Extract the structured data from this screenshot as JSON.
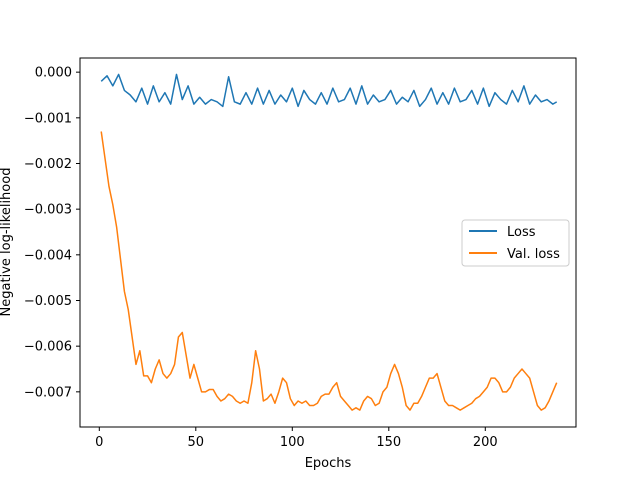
{
  "chart_data": {
    "type": "line",
    "title": "",
    "xlabel": "Epochs",
    "ylabel": "Negative log-likelihood",
    "xlim": [
      -10,
      247
    ],
    "ylim": [
      -0.00777,
      0.00031
    ],
    "xticks": [
      0,
      50,
      100,
      150,
      200
    ],
    "xtick_labels": [
      "0",
      "50",
      "100",
      "150",
      "200"
    ],
    "yticks": [
      0.0,
      -0.001,
      -0.002,
      -0.003,
      -0.004,
      -0.005,
      -0.006,
      -0.007
    ],
    "ytick_labels": [
      "0.000",
      "−0.001",
      "−0.002",
      "−0.003",
      "−0.004",
      "−0.005",
      "−0.006",
      "−0.007"
    ],
    "grid": false,
    "legend": {
      "placement": "center-right"
    },
    "colors": {
      "loss": "#1f77b4",
      "val_loss": "#ff7f0e"
    },
    "series": [
      {
        "name": "Loss",
        "color": "#1f77b4",
        "x": [
          1,
          4,
          7,
          10,
          13,
          16,
          19,
          22,
          25,
          28,
          31,
          34,
          37,
          40,
          43,
          46,
          49,
          52,
          55,
          58,
          61,
          64,
          67,
          70,
          73,
          76,
          79,
          82,
          85,
          88,
          91,
          94,
          97,
          100,
          103,
          106,
          109,
          112,
          115,
          118,
          121,
          124,
          127,
          130,
          133,
          136,
          139,
          142,
          145,
          148,
          151,
          154,
          157,
          160,
          163,
          166,
          169,
          172,
          175,
          178,
          181,
          184,
          187,
          190,
          193,
          196,
          199,
          202,
          205,
          208,
          211,
          214,
          217,
          220,
          223,
          226,
          229,
          232,
          235,
          237
        ],
        "y": [
          -0.0002,
          -8e-05,
          -0.0003,
          -5e-05,
          -0.0004,
          -0.0005,
          -0.00065,
          -0.00035,
          -0.0007,
          -0.0003,
          -0.00065,
          -0.00045,
          -0.0007,
          -5e-05,
          -0.0006,
          -0.0003,
          -0.0007,
          -0.00055,
          -0.0007,
          -0.0006,
          -0.00065,
          -0.00075,
          -0.0001,
          -0.00065,
          -0.0007,
          -0.00045,
          -0.0007,
          -0.00035,
          -0.0007,
          -0.0004,
          -0.0007,
          -0.0005,
          -0.00065,
          -0.00035,
          -0.00075,
          -0.0004,
          -0.0006,
          -0.0007,
          -0.00045,
          -0.0007,
          -0.00035,
          -0.00065,
          -0.0006,
          -0.00035,
          -0.0007,
          -0.0003,
          -0.0007,
          -0.0005,
          -0.00065,
          -0.0006,
          -0.0004,
          -0.0007,
          -0.00055,
          -0.00065,
          -0.0004,
          -0.00075,
          -0.0006,
          -0.00035,
          -0.0007,
          -0.00045,
          -0.0007,
          -0.00035,
          -0.00065,
          -0.0006,
          -0.0004,
          -0.0007,
          -0.00035,
          -0.00075,
          -0.00045,
          -0.0006,
          -0.0007,
          -0.0004,
          -0.00065,
          -0.0003,
          -0.0007,
          -0.0005,
          -0.00065,
          -0.0006,
          -0.0007,
          -0.00065
        ]
      },
      {
        "name": "Val. loss",
        "color": "#ff7f0e",
        "x": [
          1,
          3,
          5,
          7,
          9,
          11,
          13,
          15,
          17,
          19,
          21,
          23,
          25,
          27,
          29,
          31,
          33,
          35,
          37,
          39,
          41,
          43,
          45,
          47,
          49,
          51,
          53,
          55,
          57,
          59,
          61,
          63,
          65,
          67,
          69,
          71,
          73,
          75,
          77,
          79,
          81,
          83,
          85,
          87,
          89,
          91,
          93,
          95,
          97,
          99,
          101,
          103,
          105,
          107,
          109,
          111,
          113,
          115,
          117,
          119,
          121,
          123,
          125,
          127,
          129,
          131,
          133,
          135,
          137,
          139,
          141,
          143,
          145,
          147,
          149,
          151,
          153,
          155,
          157,
          159,
          161,
          163,
          165,
          167,
          169,
          171,
          173,
          175,
          177,
          179,
          181,
          183,
          185,
          187,
          189,
          191,
          193,
          195,
          197,
          199,
          201,
          203,
          205,
          207,
          209,
          211,
          213,
          215,
          217,
          219,
          221,
          223,
          225,
          227,
          229,
          231,
          233,
          235,
          237
        ],
        "y": [
          -0.0013,
          -0.0019,
          -0.0025,
          -0.0029,
          -0.0034,
          -0.0041,
          -0.0048,
          -0.0052,
          -0.0058,
          -0.0064,
          -0.0061,
          -0.00665,
          -0.00665,
          -0.0068,
          -0.0065,
          -0.0063,
          -0.0066,
          -0.0067,
          -0.0066,
          -0.0064,
          -0.0058,
          -0.0057,
          -0.0062,
          -0.0067,
          -0.0064,
          -0.0067,
          -0.007,
          -0.007,
          -0.00695,
          -0.00695,
          -0.0071,
          -0.0072,
          -0.00715,
          -0.00705,
          -0.0071,
          -0.0072,
          -0.00725,
          -0.0072,
          -0.00725,
          -0.0068,
          -0.0061,
          -0.0065,
          -0.0072,
          -0.00715,
          -0.00705,
          -0.00725,
          -0.007,
          -0.0067,
          -0.0068,
          -0.00715,
          -0.0073,
          -0.0072,
          -0.00725,
          -0.0072,
          -0.0073,
          -0.0073,
          -0.00725,
          -0.0071,
          -0.00705,
          -0.00705,
          -0.0069,
          -0.0068,
          -0.0071,
          -0.0072,
          -0.0073,
          -0.0074,
          -0.00735,
          -0.0074,
          -0.0072,
          -0.0071,
          -0.00715,
          -0.0073,
          -0.00725,
          -0.007,
          -0.0069,
          -0.0066,
          -0.0064,
          -0.0066,
          -0.0069,
          -0.0073,
          -0.0074,
          -0.00725,
          -0.00725,
          -0.0071,
          -0.0069,
          -0.0067,
          -0.0067,
          -0.0066,
          -0.0069,
          -0.0072,
          -0.0073,
          -0.0073,
          -0.00735,
          -0.0074,
          -0.00735,
          -0.0073,
          -0.00725,
          -0.00715,
          -0.0071,
          -0.007,
          -0.0069,
          -0.0067,
          -0.0067,
          -0.0068,
          -0.007,
          -0.007,
          -0.0069,
          -0.0067,
          -0.0066,
          -0.0065,
          -0.0066,
          -0.0067,
          -0.007,
          -0.0073,
          -0.0074,
          -0.00735,
          -0.0072,
          -0.007,
          -0.0068
        ]
      }
    ]
  }
}
